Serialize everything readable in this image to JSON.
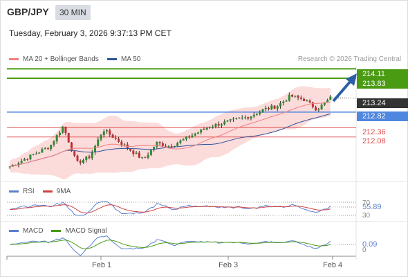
{
  "header": {
    "pair": "GBP/JPY",
    "timeframe": "30 MIN",
    "timestamp": "Tuesday, February 3, 2026 9:37:13 PM CET",
    "credit": "Research © 2026 Trading Central"
  },
  "legend": {
    "ma20": "MA 20 + Bollinger Bands",
    "ma50": "MA 50",
    "rsi": "RSI",
    "rsi_ma": "9MA",
    "macd": "MACD",
    "macd_signal": "MACD Signal"
  },
  "colors": {
    "ma20": "#f08080",
    "ma50": "#2f5597",
    "bands": "#fbd5d5",
    "resistance": "#4a9a12",
    "pivot": "#4f86e0",
    "support": "#e04646",
    "current": "#333333",
    "arrow": "#2a5fa5"
  },
  "price_levels": {
    "resistance_1": "214.11",
    "resistance_2": "213.83",
    "current": "213.24",
    "pivot": "212.82",
    "support_1": "212.36",
    "support_2": "212.08"
  },
  "rsi_panel": {
    "level_70": "70",
    "value": "55.89",
    "level_30": "30"
  },
  "macd_panel": {
    "value": "0.09",
    "zero": "0"
  },
  "x_axis": [
    "Feb 1",
    "Feb 3",
    "Feb 4"
  ],
  "chart_data": {
    "type": "line",
    "title": "GBP/JPY",
    "ylim": [
      210.9,
      214.2
    ],
    "x": [
      "",
      "Feb 1",
      "",
      "Feb 3",
      "Feb 4"
    ],
    "series": [
      {
        "name": "MA 20 + Bollinger Bands",
        "values": [
          211.2,
          211.45,
          211.9,
          212.65,
          213.0
        ]
      },
      {
        "name": "MA 50",
        "values": [
          211.15,
          211.35,
          211.8,
          212.5,
          212.85
        ]
      }
    ],
    "close_path": [
      211.2,
      211.4,
      211.6,
      211.8,
      212.4,
      211.3,
      211.5,
      212.3,
      212.0,
      211.7,
      211.4,
      211.9,
      211.8,
      212.0,
      212.2,
      212.4,
      212.5,
      212.6,
      212.7,
      212.9,
      213.0,
      213.3,
      213.2,
      212.9,
      213.24
    ]
  }
}
